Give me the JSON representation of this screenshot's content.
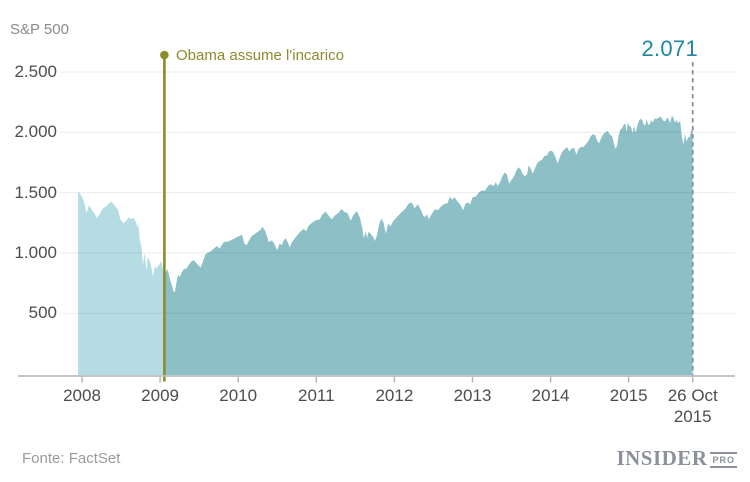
{
  "header": {
    "title": "S&P 500"
  },
  "footer": {
    "source": "Fonte: FactSet",
    "brand": "INSIDER",
    "brand_suffix": "PRO"
  },
  "chart_data": {
    "type": "area",
    "title": "S&P 500",
    "xlabel": "",
    "ylabel": "S&P 500",
    "grid": true,
    "x_range": [
      2007.95,
      2015.82
    ],
    "ylim": [
      0,
      2500
    ],
    "y_ticks": [
      {
        "v": 2500,
        "label": "2.500"
      },
      {
        "v": 2000,
        "label": "2.000"
      },
      {
        "v": 1500,
        "label": "1.500"
      },
      {
        "v": 1000,
        "label": "1.000"
      },
      {
        "v": 500,
        "label": "500"
      }
    ],
    "x_ticks": [
      {
        "x": 2008,
        "label": "2008"
      },
      {
        "x": 2009,
        "label": "2009"
      },
      {
        "x": 2010,
        "label": "2010"
      },
      {
        "x": 2011,
        "label": "2011"
      },
      {
        "x": 2012,
        "label": "2012"
      },
      {
        "x": 2013,
        "label": "2013"
      },
      {
        "x": 2014,
        "label": "2014"
      },
      {
        "x": 2015,
        "label": "2015"
      },
      {
        "x": 2015.82,
        "label": "26 Oct",
        "label2": "2015"
      }
    ],
    "annotation": {
      "x": 2009.055,
      "label": "Obama assume l'incarico"
    },
    "endpoint": {
      "x": 2015.82,
      "value": 2071,
      "label": "2.071"
    },
    "colors": {
      "area_before_annotation": "#b5dce2",
      "area_after_annotation": "#8cc0c6",
      "annotation_line": "#8c8c2e",
      "endpoint_label": "#1f86a1",
      "dashed_line": "#909090",
      "axis_line": "#bdbdbd"
    },
    "series": [
      {
        "name": "S&P 500",
        "points": [
          [
            2007.95,
            1515
          ],
          [
            2008.0,
            1468
          ],
          [
            2008.03,
            1411
          ],
          [
            2008.06,
            1333
          ],
          [
            2008.09,
            1395
          ],
          [
            2008.13,
            1353
          ],
          [
            2008.16,
            1330
          ],
          [
            2008.19,
            1288
          ],
          [
            2008.22,
            1315
          ],
          [
            2008.27,
            1370
          ],
          [
            2008.31,
            1388
          ],
          [
            2008.35,
            1413
          ],
          [
            2008.38,
            1426
          ],
          [
            2008.42,
            1390
          ],
          [
            2008.46,
            1360
          ],
          [
            2008.49,
            1280
          ],
          [
            2008.53,
            1245
          ],
          [
            2008.56,
            1262
          ],
          [
            2008.6,
            1296
          ],
          [
            2008.63,
            1278
          ],
          [
            2008.66,
            1292
          ],
          [
            2008.69,
            1255
          ],
          [
            2008.71,
            1213
          ],
          [
            2008.72,
            1252
          ],
          [
            2008.74,
            1106
          ],
          [
            2008.76,
            1056
          ],
          [
            2008.78,
            899
          ],
          [
            2008.8,
            1003
          ],
          [
            2008.81,
            940
          ],
          [
            2008.83,
            848
          ],
          [
            2008.84,
            968
          ],
          [
            2008.87,
            931
          ],
          [
            2008.89,
            873
          ],
          [
            2008.91,
            800
          ],
          [
            2008.93,
            887
          ],
          [
            2008.95,
            871
          ],
          [
            2008.97,
            888
          ],
          [
            2008.99,
            903
          ],
          [
            2009.01,
            932
          ],
          [
            2009.03,
            890
          ],
          [
            2009.04,
            850
          ],
          [
            2009.055,
            805
          ],
          [
            2009.07,
            832
          ],
          [
            2009.09,
            869
          ],
          [
            2009.11,
            827
          ],
          [
            2009.13,
            770
          ],
          [
            2009.15,
            735
          ],
          [
            2009.17,
            683
          ],
          [
            2009.19,
            677
          ],
          [
            2009.21,
            757
          ],
          [
            2009.23,
            823
          ],
          [
            2009.25,
            798
          ],
          [
            2009.28,
            843
          ],
          [
            2009.31,
            866
          ],
          [
            2009.34,
            873
          ],
          [
            2009.37,
            903
          ],
          [
            2009.4,
            929
          ],
          [
            2009.43,
            940
          ],
          [
            2009.46,
            919
          ],
          [
            2009.49,
            896
          ],
          [
            2009.52,
            879
          ],
          [
            2009.55,
            932
          ],
          [
            2009.58,
            987
          ],
          [
            2009.61,
            1002
          ],
          [
            2009.64,
            1010
          ],
          [
            2009.67,
            1026
          ],
          [
            2009.7,
            1043
          ],
          [
            2009.73,
            1057
          ],
          [
            2009.76,
            1036
          ],
          [
            2009.79,
            1066
          ],
          [
            2009.82,
            1093
          ],
          [
            2009.85,
            1091
          ],
          [
            2009.88,
            1096
          ],
          [
            2009.91,
            1106
          ],
          [
            2009.94,
            1115
          ],
          [
            2009.97,
            1126
          ],
          [
            2010.0,
            1137
          ],
          [
            2010.05,
            1150
          ],
          [
            2010.08,
            1075
          ],
          [
            2010.11,
            1066
          ],
          [
            2010.14,
            1104
          ],
          [
            2010.17,
            1138
          ],
          [
            2010.2,
            1150
          ],
          [
            2010.23,
            1166
          ],
          [
            2010.26,
            1178
          ],
          [
            2010.29,
            1194
          ],
          [
            2010.31,
            1217
          ],
          [
            2010.34,
            1187
          ],
          [
            2010.37,
            1136
          ],
          [
            2010.39,
            1089
          ],
          [
            2010.42,
            1104
          ],
          [
            2010.45,
            1091
          ],
          [
            2010.47,
            1065
          ],
          [
            2010.5,
            1023
          ],
          [
            2010.53,
            1078
          ],
          [
            2010.56,
            1065
          ],
          [
            2010.58,
            1102
          ],
          [
            2010.61,
            1122
          ],
          [
            2010.64,
            1079
          ],
          [
            2010.66,
            1047
          ],
          [
            2010.69,
            1090
          ],
          [
            2010.72,
            1116
          ],
          [
            2010.75,
            1141
          ],
          [
            2010.78,
            1165
          ],
          [
            2010.81,
            1183
          ],
          [
            2010.84,
            1199
          ],
          [
            2010.87,
            1180
          ],
          [
            2010.9,
            1224
          ],
          [
            2010.93,
            1241
          ],
          [
            2010.96,
            1258
          ],
          [
            2011.0,
            1272
          ],
          [
            2011.04,
            1276
          ],
          [
            2011.08,
            1319
          ],
          [
            2011.12,
            1343
          ],
          [
            2011.16,
            1306
          ],
          [
            2011.2,
            1279
          ],
          [
            2011.24,
            1313
          ],
          [
            2011.28,
            1329
          ],
          [
            2011.32,
            1364
          ],
          [
            2011.36,
            1340
          ],
          [
            2011.4,
            1331
          ],
          [
            2011.44,
            1268
          ],
          [
            2011.48,
            1321
          ],
          [
            2011.52,
            1345
          ],
          [
            2011.56,
            1292
          ],
          [
            2011.59,
            1199
          ],
          [
            2011.61,
            1119
          ],
          [
            2011.63,
            1179
          ],
          [
            2011.65,
            1124
          ],
          [
            2011.67,
            1177
          ],
          [
            2011.7,
            1154
          ],
          [
            2011.73,
            1131
          ],
          [
            2011.75,
            1099
          ],
          [
            2011.78,
            1155
          ],
          [
            2011.8,
            1224
          ],
          [
            2011.83,
            1285
          ],
          [
            2011.86,
            1253
          ],
          [
            2011.89,
            1159
          ],
          [
            2011.92,
            1244
          ],
          [
            2011.95,
            1219
          ],
          [
            2011.98,
            1258
          ],
          [
            2012.02,
            1289
          ],
          [
            2012.06,
            1316
          ],
          [
            2012.1,
            1343
          ],
          [
            2012.14,
            1366
          ],
          [
            2012.18,
            1408
          ],
          [
            2012.22,
            1419
          ],
          [
            2012.26,
            1370
          ],
          [
            2012.3,
            1403
          ],
          [
            2012.34,
            1353
          ],
          [
            2012.38,
            1295
          ],
          [
            2012.42,
            1318
          ],
          [
            2012.44,
            1278
          ],
          [
            2012.48,
            1325
          ],
          [
            2012.52,
            1362
          ],
          [
            2012.56,
            1356
          ],
          [
            2012.6,
            1386
          ],
          [
            2012.64,
            1406
          ],
          [
            2012.68,
            1411
          ],
          [
            2012.71,
            1466
          ],
          [
            2012.74,
            1441
          ],
          [
            2012.77,
            1461
          ],
          [
            2012.8,
            1433
          ],
          [
            2012.83,
            1412
          ],
          [
            2012.86,
            1380
          ],
          [
            2012.88,
            1353
          ],
          [
            2012.91,
            1409
          ],
          [
            2012.94,
            1418
          ],
          [
            2012.97,
            1402
          ],
          [
            2013.0,
            1462
          ],
          [
            2013.04,
            1466
          ],
          [
            2013.08,
            1498
          ],
          [
            2013.12,
            1518
          ],
          [
            2013.16,
            1515
          ],
          [
            2013.2,
            1556
          ],
          [
            2013.24,
            1569
          ],
          [
            2013.27,
            1553
          ],
          [
            2013.3,
            1589
          ],
          [
            2013.32,
            1555
          ],
          [
            2013.35,
            1582
          ],
          [
            2013.38,
            1633
          ],
          [
            2013.41,
            1667
          ],
          [
            2013.44,
            1650
          ],
          [
            2013.47,
            1573
          ],
          [
            2013.5,
            1606
          ],
          [
            2013.53,
            1632
          ],
          [
            2013.56,
            1681
          ],
          [
            2013.59,
            1710
          ],
          [
            2013.62,
            1691
          ],
          [
            2013.64,
            1656
          ],
          [
            2013.67,
            1633
          ],
          [
            2013.7,
            1655
          ],
          [
            2013.72,
            1726
          ],
          [
            2013.75,
            1692
          ],
          [
            2013.77,
            1656
          ],
          [
            2013.8,
            1703
          ],
          [
            2013.83,
            1745
          ],
          [
            2013.86,
            1762
          ],
          [
            2013.89,
            1771
          ],
          [
            2013.92,
            1806
          ],
          [
            2013.95,
            1805
          ],
          [
            2013.98,
            1841
          ],
          [
            2014.0,
            1848
          ],
          [
            2014.03,
            1838
          ],
          [
            2014.06,
            1797
          ],
          [
            2014.09,
            1742
          ],
          [
            2014.12,
            1797
          ],
          [
            2014.15,
            1839
          ],
          [
            2014.18,
            1859
          ],
          [
            2014.21,
            1878
          ],
          [
            2014.24,
            1841
          ],
          [
            2014.27,
            1866
          ],
          [
            2014.3,
            1872
          ],
          [
            2014.33,
            1815
          ],
          [
            2014.36,
            1865
          ],
          [
            2014.39,
            1878
          ],
          [
            2014.42,
            1878
          ],
          [
            2014.45,
            1900
          ],
          [
            2014.48,
            1924
          ],
          [
            2014.51,
            1963
          ],
          [
            2014.54,
            1985
          ],
          [
            2014.57,
            1978
          ],
          [
            2014.6,
            1925
          ],
          [
            2014.62,
            1909
          ],
          [
            2014.65,
            1955
          ],
          [
            2014.68,
            1988
          ],
          [
            2014.71,
            2003
          ],
          [
            2014.73,
            2011
          ],
          [
            2014.76,
            1982
          ],
          [
            2014.79,
            1968
          ],
          [
            2014.81,
            1906
          ],
          [
            2014.83,
            1862
          ],
          [
            2014.85,
            1887
          ],
          [
            2014.87,
            1965
          ],
          [
            2014.89,
            2018
          ],
          [
            2014.92,
            2040
          ],
          [
            2014.94,
            2069
          ],
          [
            2014.96,
            2068
          ],
          [
            2014.97,
            2002
          ],
          [
            2014.99,
            2089
          ],
          [
            2015.0,
            2059
          ],
          [
            2015.03,
            2045
          ],
          [
            2015.05,
            1993
          ],
          [
            2015.07,
            2052
          ],
          [
            2015.09,
            1995
          ],
          [
            2015.11,
            2055
          ],
          [
            2015.13,
            2097
          ],
          [
            2015.15,
            2110
          ],
          [
            2015.17,
            2105
          ],
          [
            2015.19,
            2071
          ],
          [
            2015.21,
            2053
          ],
          [
            2015.23,
            2108
          ],
          [
            2015.25,
            2061
          ],
          [
            2015.27,
            2067
          ],
          [
            2015.29,
            2102
          ],
          [
            2015.31,
            2081
          ],
          [
            2015.33,
            2118
          ],
          [
            2015.35,
            2108
          ],
          [
            2015.37,
            2116
          ],
          [
            2015.39,
            2123
          ],
          [
            2015.41,
            2131
          ],
          [
            2015.43,
            2107
          ],
          [
            2015.45,
            2093
          ],
          [
            2015.47,
            2094
          ],
          [
            2015.49,
            2121
          ],
          [
            2015.51,
            2110
          ],
          [
            2015.53,
            2077
          ],
          [
            2015.55,
            2133
          ],
          [
            2015.57,
            2127
          ],
          [
            2015.59,
            2080
          ],
          [
            2015.61,
            2104
          ],
          [
            2015.63,
            2078
          ],
          [
            2015.66,
            2092
          ],
          [
            2015.68,
            1971
          ],
          [
            2015.7,
            1893
          ],
          [
            2015.72,
            1989
          ],
          [
            2015.74,
            1921
          ],
          [
            2015.76,
            1961
          ],
          [
            2015.78,
            1958
          ],
          [
            2015.8,
            2015
          ],
          [
            2015.81,
            2033
          ],
          [
            2015.82,
            2071
          ]
        ]
      }
    ]
  }
}
